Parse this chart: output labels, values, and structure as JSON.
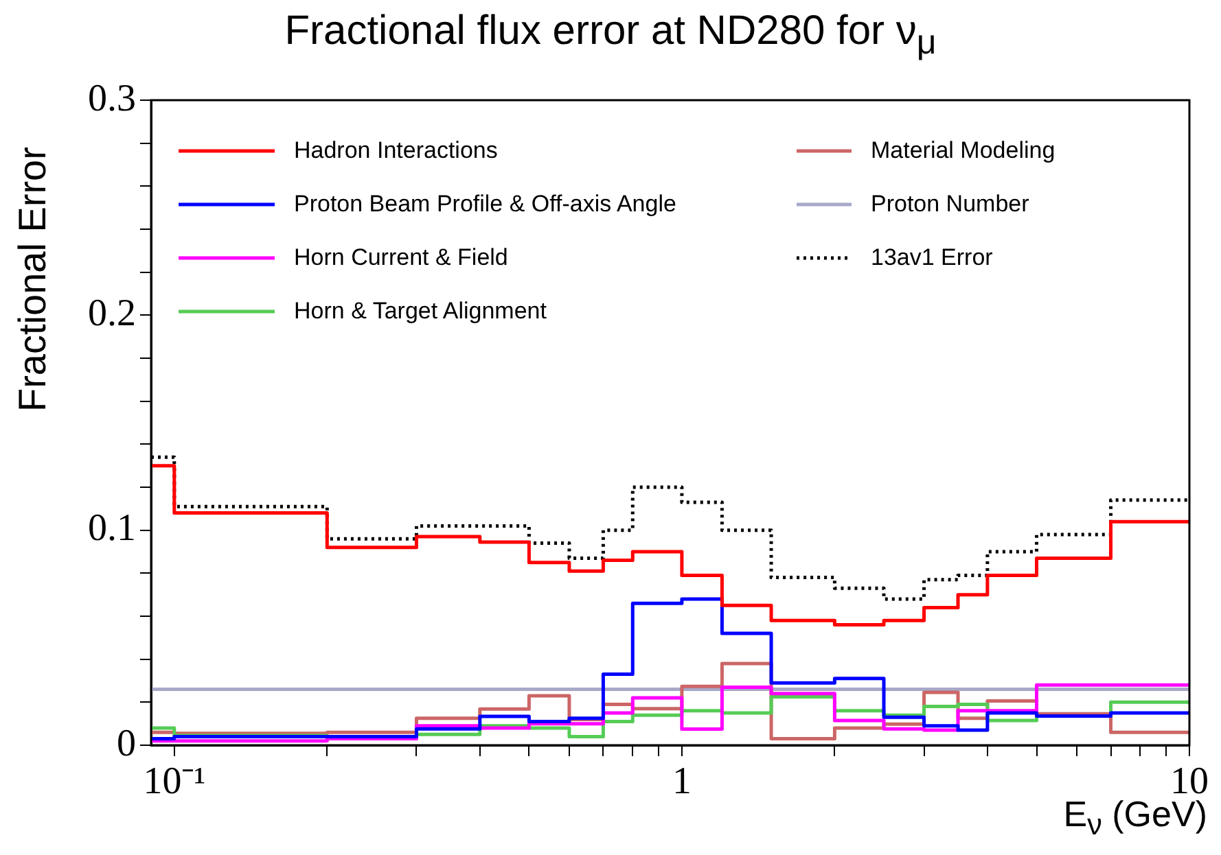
{
  "chart_data": {
    "type": "step",
    "title": "Fractional flux error at ND280 for ν$_{μ}$",
    "xlabel": "E$_{ν}$ (GeV)",
    "ylabel": "Fractional Error",
    "log": "x",
    "legend": "top",
    "marker": "none",
    "xlim": [
      0.09,
      10
    ],
    "ylim": [
      0,
      0.3
    ],
    "xticks": [
      {
        "value": 0.1,
        "label": "10⁻¹"
      },
      {
        "value": 0.2,
        "label": null
      },
      {
        "value": 0.3,
        "label": null
      },
      {
        "value": 0.4,
        "label": null
      },
      {
        "value": 0.5,
        "label": null
      },
      {
        "value": 0.6,
        "label": null
      },
      {
        "value": 0.7,
        "label": null
      },
      {
        "value": 0.8,
        "label": null
      },
      {
        "value": 0.9,
        "label": null
      },
      1,
      {
        "value": 2,
        "label": null
      },
      {
        "value": 3,
        "label": null
      },
      {
        "value": 4,
        "label": null
      },
      {
        "value": 5,
        "label": null
      },
      {
        "value": 6,
        "label": null
      },
      {
        "value": 7,
        "label": null
      },
      {
        "value": 8,
        "label": null
      },
      {
        "value": 9,
        "label": null
      },
      10
    ],
    "yticks": [
      0,
      {
        "value": 0.02,
        "label": null
      },
      {
        "value": 0.04,
        "label": null
      },
      {
        "value": 0.06,
        "label": null
      },
      {
        "value": 0.08,
        "label": null
      },
      0.1,
      {
        "value": 0.12,
        "label": null
      },
      {
        "value": 0.14,
        "label": null
      },
      {
        "value": 0.16,
        "label": null
      },
      {
        "value": 0.18,
        "label": null
      },
      0.2,
      {
        "value": 0.22,
        "label": null
      },
      {
        "value": 0.24,
        "label": null
      },
      {
        "value": 0.26,
        "label": null
      },
      {
        "value": 0.28,
        "label": null
      },
      0.3
    ],
    "x": [
      0.09,
      0.1,
      0.2,
      0.3,
      0.4,
      0.5,
      0.6,
      0.7,
      0.8,
      1.0,
      1.2,
      1.5,
      2.0,
      2.5,
      3.0,
      3.5,
      4.0,
      5.0,
      7.0
    ],
    "series": [
      {
        "name": "Hadron Interactions",
        "color": "#ff0000",
        "line_style": "solid",
        "values": [
          0.13,
          0.108,
          0.092,
          0.097,
          0.0945,
          0.085,
          0.081,
          0.086,
          0.09,
          0.079,
          0.065,
          0.058,
          0.056,
          0.058,
          0.064,
          0.07,
          0.079,
          0.087,
          0.104
        ]
      },
      {
        "name": "Proton Beam Profile & Off-axis Angle",
        "color": "#0000ff",
        "line_style": "solid",
        "values": [
          0.003,
          0.004,
          0.004,
          0.0076,
          0.0134,
          0.011,
          0.0125,
          0.033,
          0.066,
          0.068,
          0.052,
          0.029,
          0.031,
          0.013,
          0.009,
          0.007,
          0.015,
          0.0136,
          0.015
        ]
      },
      {
        "name": "Horn Current & Field",
        "color": "#ff00ff",
        "line_style": "solid",
        "values": [
          0.002,
          0.002,
          0.003,
          0.009,
          0.008,
          0.01,
          0.01,
          0.015,
          0.022,
          0.0075,
          0.027,
          0.024,
          0.0115,
          0.0076,
          0.007,
          0.016,
          0.016,
          0.028,
          0.028
        ]
      },
      {
        "name": "Horn & Target Alignment",
        "color": "#55cc55",
        "line_style": "solid",
        "values": [
          0.008,
          0.0045,
          0.003,
          0.005,
          0.009,
          0.008,
          0.004,
          0.011,
          0.014,
          0.016,
          0.015,
          0.0225,
          0.016,
          0.014,
          0.018,
          0.019,
          0.0115,
          0.0136,
          0.02
        ]
      },
      {
        "name": "Material Modeling",
        "color": "#cc6666",
        "line_style": "solid",
        "values": [
          0.006,
          0.0055,
          0.006,
          0.0125,
          0.0168,
          0.023,
          0.012,
          0.019,
          0.017,
          0.0274,
          0.038,
          0.003,
          0.008,
          0.0098,
          0.0246,
          0.0125,
          0.0206,
          0.0146,
          0.006
        ]
      },
      {
        "name": "Proton Number",
        "color": "#a8a8c8",
        "line_style": "solid",
        "values": [
          0.026,
          0.026,
          0.026,
          0.026,
          0.026,
          0.026,
          0.026,
          0.026,
          0.026,
          0.026,
          0.026,
          0.026,
          0.026,
          0.026,
          0.026,
          0.026,
          0.026,
          0.026,
          0.026
        ]
      },
      {
        "name": "13av1 Error",
        "color": "#000000",
        "line_style": "dotted",
        "values": [
          0.134,
          0.111,
          0.096,
          0.102,
          0.102,
          0.094,
          0.087,
          0.1,
          0.12,
          0.113,
          0.1,
          0.078,
          0.073,
          0.068,
          0.077,
          0.079,
          0.09,
          0.098,
          0.114
        ]
      }
    ]
  }
}
